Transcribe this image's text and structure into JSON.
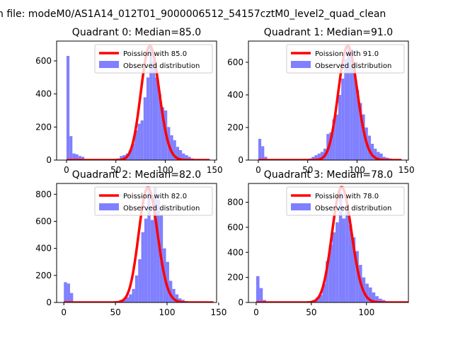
{
  "figure": {
    "suptitle": "n file: modeM0/AS1A14_012T01_9000006512_54157cztM0_level2_quad_clean"
  },
  "colors": {
    "histogram": "#8080ff",
    "poisson": "#ff0000",
    "axes": "#000000"
  },
  "chart_data": [
    {
      "type": "bar",
      "title": "Quadrant 0: Median=85.0",
      "median": 85.0,
      "legend": {
        "poisson_label": "Poission with 85.0",
        "hist_label": "Observed distribution",
        "placement": "top-right"
      },
      "xlim": [
        -10,
        152
      ],
      "ylim": [
        0,
        720
      ],
      "xticks": [
        0,
        50,
        100,
        150
      ],
      "yticks": [
        0,
        200,
        400,
        600
      ],
      "bin_width": 3,
      "bins": [
        [
          0,
          630
        ],
        [
          3,
          145
        ],
        [
          6,
          40
        ],
        [
          9,
          35
        ],
        [
          12,
          25
        ],
        [
          15,
          20
        ],
        [
          18,
          5
        ],
        [
          21,
          5
        ],
        [
          24,
          3
        ],
        [
          27,
          2
        ],
        [
          30,
          2
        ],
        [
          33,
          1
        ],
        [
          36,
          1
        ],
        [
          39,
          1
        ],
        [
          42,
          2
        ],
        [
          45,
          3
        ],
        [
          48,
          5
        ],
        [
          51,
          10
        ],
        [
          54,
          25
        ],
        [
          57,
          30
        ],
        [
          60,
          40
        ],
        [
          63,
          60
        ],
        [
          66,
          100
        ],
        [
          69,
          180
        ],
        [
          72,
          220
        ],
        [
          75,
          240
        ],
        [
          78,
          380
        ],
        [
          81,
          500
        ],
        [
          84,
          690
        ],
        [
          87,
          600
        ],
        [
          90,
          500
        ],
        [
          93,
          400
        ],
        [
          96,
          320
        ],
        [
          99,
          300
        ],
        [
          102,
          200
        ],
        [
          105,
          150
        ],
        [
          108,
          120
        ],
        [
          111,
          80
        ],
        [
          114,
          60
        ],
        [
          117,
          40
        ],
        [
          120,
          30
        ],
        [
          123,
          20
        ],
        [
          126,
          10
        ],
        [
          129,
          5
        ],
        [
          132,
          3
        ],
        [
          135,
          2
        ],
        [
          138,
          1
        ],
        [
          141,
          1
        ]
      ],
      "poisson_mean": 85.0,
      "poisson_peak": 690
    },
    {
      "type": "bar",
      "title": "Quadrant 1: Median=91.0",
      "median": 91.0,
      "legend": {
        "poisson_label": "Poission with 91.0",
        "hist_label": "Observed distribution",
        "placement": "top-right"
      },
      "xlim": [
        -10,
        152
      ],
      "ylim": [
        0,
        730
      ],
      "xticks": [
        0,
        50,
        100,
        150
      ],
      "yticks": [
        0,
        200,
        400,
        600
      ],
      "bin_width": 3,
      "bins": [
        [
          0,
          130
        ],
        [
          3,
          85
        ],
        [
          6,
          20
        ],
        [
          9,
          5
        ],
        [
          12,
          3
        ],
        [
          15,
          2
        ],
        [
          18,
          1
        ],
        [
          42,
          1
        ],
        [
          45,
          3
        ],
        [
          48,
          5
        ],
        [
          51,
          10
        ],
        [
          54,
          20
        ],
        [
          57,
          30
        ],
        [
          60,
          40
        ],
        [
          63,
          50
        ],
        [
          66,
          70
        ],
        [
          69,
          160
        ],
        [
          72,
          170
        ],
        [
          75,
          250
        ],
        [
          78,
          280
        ],
        [
          81,
          400
        ],
        [
          84,
          500
        ],
        [
          87,
          620
        ],
        [
          90,
          700
        ],
        [
          93,
          680
        ],
        [
          96,
          600
        ],
        [
          99,
          430
        ],
        [
          102,
          350
        ],
        [
          105,
          280
        ],
        [
          108,
          200
        ],
        [
          111,
          150
        ],
        [
          114,
          100
        ],
        [
          117,
          70
        ],
        [
          120,
          50
        ],
        [
          123,
          40
        ],
        [
          126,
          20
        ],
        [
          129,
          15
        ],
        [
          132,
          10
        ],
        [
          135,
          5
        ],
        [
          138,
          3
        ],
        [
          141,
          2
        ]
      ],
      "poisson_mean": 91.0,
      "poisson_peak": 700
    },
    {
      "type": "bar",
      "title": "Quadrant 2: Median=82.0",
      "median": 82.0,
      "legend": {
        "poisson_label": "Poission with 82.0",
        "hist_label": "Observed distribution",
        "placement": "top-right"
      },
      "xlim": [
        -7,
        148
      ],
      "ylim": [
        0,
        880
      ],
      "xticks": [
        0,
        50,
        100,
        150
      ],
      "yticks": [
        0,
        200,
        400,
        600,
        800
      ],
      "bin_width": 3,
      "bins": [
        [
          0,
          150
        ],
        [
          3,
          140
        ],
        [
          6,
          70
        ],
        [
          9,
          5
        ],
        [
          12,
          3
        ],
        [
          15,
          2
        ],
        [
          18,
          1
        ],
        [
          42,
          1
        ],
        [
          45,
          2
        ],
        [
          48,
          5
        ],
        [
          51,
          10
        ],
        [
          54,
          20
        ],
        [
          57,
          30
        ],
        [
          60,
          40
        ],
        [
          63,
          60
        ],
        [
          66,
          100
        ],
        [
          69,
          200
        ],
        [
          72,
          320
        ],
        [
          75,
          520
        ],
        [
          78,
          620
        ],
        [
          81,
          850
        ],
        [
          84,
          610
        ],
        [
          87,
          850
        ],
        [
          90,
          760
        ],
        [
          93,
          650
        ],
        [
          96,
          400
        ],
        [
          99,
          300
        ],
        [
          102,
          160
        ],
        [
          105,
          100
        ],
        [
          108,
          60
        ],
        [
          111,
          30
        ],
        [
          114,
          20
        ],
        [
          117,
          10
        ],
        [
          120,
          5
        ],
        [
          123,
          3
        ],
        [
          126,
          2
        ],
        [
          129,
          1
        ],
        [
          132,
          1
        ]
      ],
      "poisson_mean": 82.0,
      "poisson_peak": 850
    },
    {
      "type": "bar",
      "title": "Quadrant 3: Median=78.0",
      "median": 78.0,
      "legend": {
        "poisson_label": "Poission with 78.0",
        "hist_label": "Observed distribution",
        "placement": "top-right"
      },
      "xlim": [
        -7,
        138
      ],
      "ylim": [
        0,
        950
      ],
      "xticks": [
        0,
        50,
        100
      ],
      "yticks": [
        0,
        200,
        400,
        600,
        800
      ],
      "bin_width": 3,
      "bins": [
        [
          0,
          210
        ],
        [
          3,
          115
        ],
        [
          6,
          20
        ],
        [
          9,
          5
        ],
        [
          12,
          3
        ],
        [
          15,
          2
        ],
        [
          18,
          1
        ],
        [
          39,
          1
        ],
        [
          42,
          2
        ],
        [
          45,
          5
        ],
        [
          48,
          10
        ],
        [
          51,
          20
        ],
        [
          54,
          40
        ],
        [
          57,
          60
        ],
        [
          60,
          150
        ],
        [
          63,
          330
        ],
        [
          66,
          460
        ],
        [
          69,
          560
        ],
        [
          72,
          640
        ],
        [
          75,
          880
        ],
        [
          78,
          670
        ],
        [
          81,
          770
        ],
        [
          84,
          620
        ],
        [
          87,
          520
        ],
        [
          90,
          410
        ],
        [
          93,
          300
        ],
        [
          96,
          200
        ],
        [
          99,
          150
        ],
        [
          102,
          120
        ],
        [
          105,
          80
        ],
        [
          108,
          50
        ],
        [
          111,
          30
        ],
        [
          114,
          20
        ],
        [
          117,
          10
        ],
        [
          120,
          5
        ],
        [
          123,
          3
        ],
        [
          126,
          2
        ],
        [
          129,
          1
        ]
      ],
      "poisson_mean": 78.0,
      "poisson_peak": 920
    }
  ]
}
